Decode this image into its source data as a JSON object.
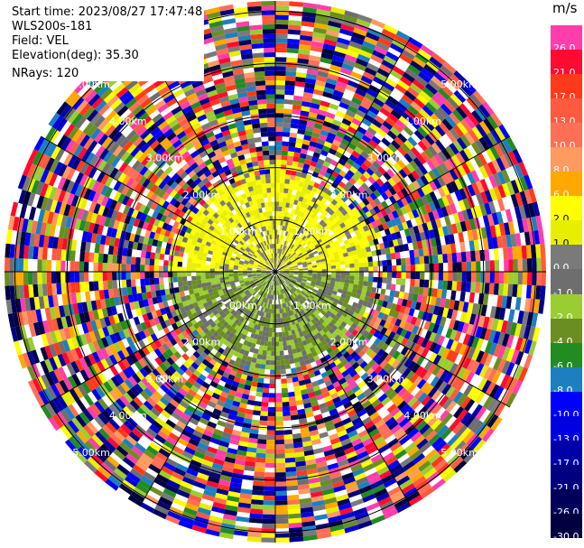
{
  "header": {
    "start_time": "Start time: 2023/08/27 17:47:48",
    "instrument": "WLS200s-181",
    "field": "Field: VEL",
    "elevation": "Elevation(deg): 35.30",
    "nrays": "NRays: 120"
  },
  "colorbar": {
    "unit": "m/s",
    "levels": [
      {
        "label": "26.0",
        "color": "#ff3dab"
      },
      {
        "label": "21.0",
        "color": "#ff0a30"
      },
      {
        "label": "17.0",
        "color": "#ff3a1a"
      },
      {
        "label": "13.0",
        "color": "#ff5a40"
      },
      {
        "label": "10.0",
        "color": "#ff6f55"
      },
      {
        "label": "8.0",
        "color": "#ff9a60"
      },
      {
        "label": "6.0",
        "color": "#ffa800"
      },
      {
        "label": "2.0",
        "color": "#ffff00"
      },
      {
        "label": "1.0",
        "color": "#e8ee00"
      },
      {
        "label": "0.0",
        "color": "#7a7a7a"
      },
      {
        "label": "-1.0",
        "color": "#6e6e6e"
      },
      {
        "label": "-2.0",
        "color": "#9acd32"
      },
      {
        "label": "-4.0",
        "color": "#6b8e23"
      },
      {
        "label": "-6.0",
        "color": "#228b22"
      },
      {
        "label": "-8.0",
        "color": "#1e7fc0"
      },
      {
        "label": "-10.0",
        "color": "#0000ff"
      },
      {
        "label": "-13.0",
        "color": "#0000e0"
      },
      {
        "label": "-17.0",
        "color": "#0000a8"
      },
      {
        "label": "-21.0",
        "color": "#000080"
      },
      {
        "label": "-26.0",
        "color": "#00005a"
      },
      {
        "label": "-30.0",
        "color": "#000040"
      }
    ]
  },
  "chart_data": {
    "type": "heatmap",
    "title": "",
    "field": "VEL",
    "units": "m/s",
    "nrays": 120,
    "elevation_deg": 35.3,
    "range_rings_km": [
      1.0,
      2.0,
      3.0,
      4.0,
      5.0
    ],
    "range_ring_labels": [
      "1.00km",
      "2.00km",
      "3.00km",
      "4.00km",
      "5.00km"
    ],
    "max_range_km": 5.2,
    "spoke_angles_deg": [
      0,
      30,
      60,
      90,
      120,
      150,
      180,
      210,
      240,
      270,
      300,
      330
    ],
    "noise_beyond_km": 2.1,
    "near_field": {
      "north_half_velocity_ms": [
        1.0,
        2.0,
        0.0
      ],
      "south_half_velocity_ms": [
        -1.0,
        -2.0,
        -4.0
      ]
    },
    "colorbar_range": [
      -30.0,
      26.0
    ]
  }
}
